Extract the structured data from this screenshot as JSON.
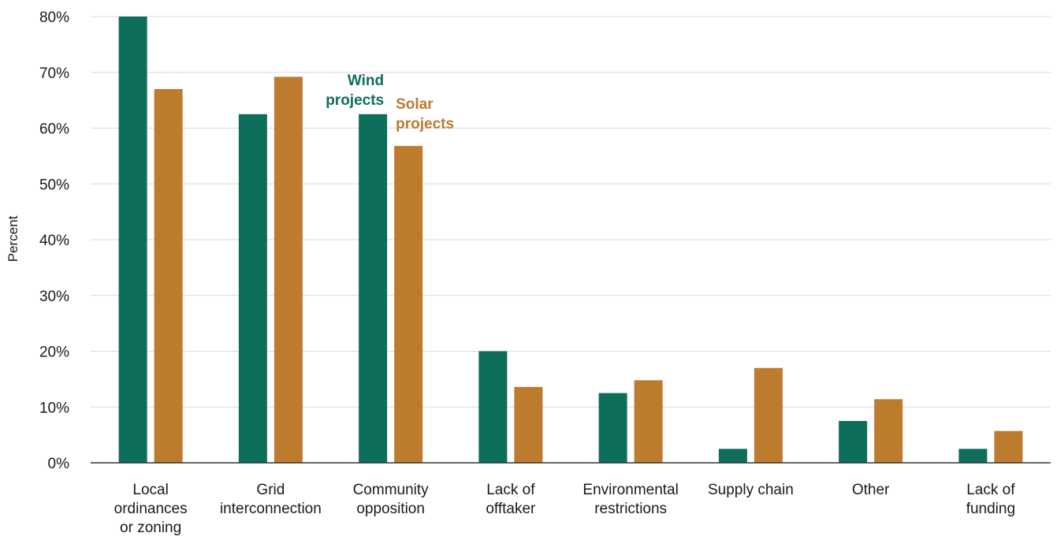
{
  "chart_data": {
    "type": "bar",
    "title": "",
    "xlabel": "",
    "ylabel": "Percent",
    "ylim": [
      0,
      80
    ],
    "y_ticks": [
      "0%",
      "10%",
      "20%",
      "30%",
      "40%",
      "50%",
      "60%",
      "70%",
      "80%"
    ],
    "grid": true,
    "categories": [
      [
        "Local",
        "ordinances",
        "or zoning"
      ],
      [
        "Grid",
        "interconnection"
      ],
      [
        "Community",
        "opposition"
      ],
      [
        "Lack of",
        "offtaker"
      ],
      [
        "Environmental",
        "restrictions"
      ],
      [
        "Supply chain"
      ],
      [
        "Other"
      ],
      [
        "Lack of",
        "funding"
      ]
    ],
    "series": [
      {
        "name": "Wind projects",
        "label_lines": [
          "Wind",
          "projects"
        ],
        "color": "#0e6e5c",
        "values": [
          80,
          62.5,
          62.5,
          20,
          12.5,
          2.5,
          7.5,
          2.5
        ]
      },
      {
        "name": "Solar projects",
        "label_lines": [
          "Solar",
          "projects"
        ],
        "color": "#bd7b2e",
        "values": [
          67,
          69.2,
          56.8,
          13.6,
          14.8,
          17,
          11.4,
          5.7
        ]
      }
    ],
    "legend": "direct labels above Community opposition bars"
  }
}
